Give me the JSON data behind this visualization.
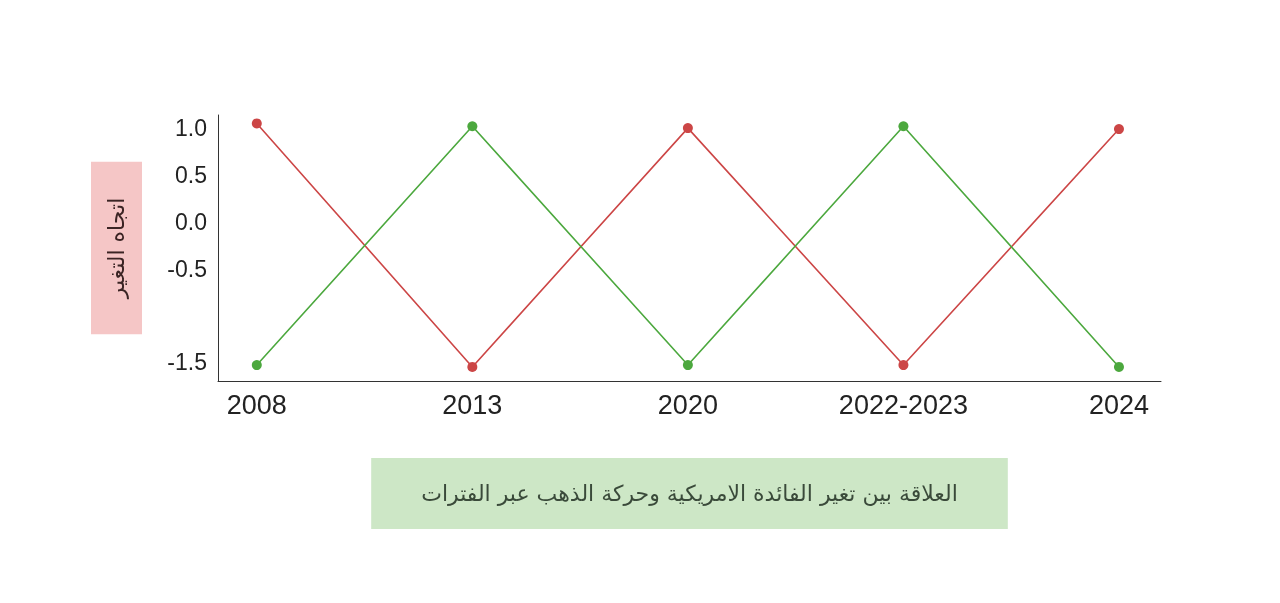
{
  "chart_data": {
    "type": "line",
    "xlabel": "العلاقة بين تغير الفائدة الامريكية وحركة الذهب عبر الفترات",
    "ylabel": "اتجاه التغير",
    "categories": [
      "2008",
      "2013",
      "2020",
      "2022-2023",
      "2024"
    ],
    "series": [
      {
        "color": "#cc4646",
        "values": [
          1.05,
          -1.55,
          1.0,
          -1.53,
          0.99
        ]
      },
      {
        "color": "#4ca83e",
        "values": [
          -1.53,
          1.02,
          -1.53,
          1.02,
          -1.55
        ]
      }
    ],
    "ylim": [
      -1.7,
      1.14
    ],
    "yticks": [
      {
        "value": 1,
        "label": "1.0"
      },
      0.5,
      {
        "value": 0,
        "label": "0.0"
      },
      -0.5,
      -1.5
    ],
    "marker": "circle",
    "line_style": "solid"
  }
}
